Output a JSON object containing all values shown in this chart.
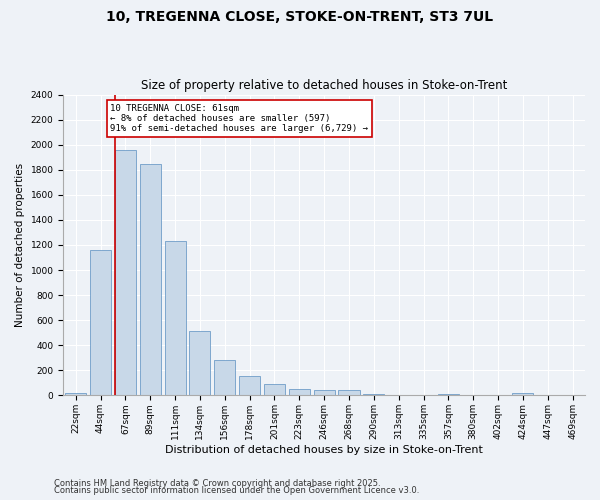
{
  "title": "10, TREGENNA CLOSE, STOKE-ON-TRENT, ST3 7UL",
  "subtitle": "Size of property relative to detached houses in Stoke-on-Trent",
  "xlabel": "Distribution of detached houses by size in Stoke-on-Trent",
  "ylabel": "Number of detached properties",
  "categories": [
    "22sqm",
    "44sqm",
    "67sqm",
    "89sqm",
    "111sqm",
    "134sqm",
    "156sqm",
    "178sqm",
    "201sqm",
    "223sqm",
    "246sqm",
    "268sqm",
    "290sqm",
    "313sqm",
    "335sqm",
    "357sqm",
    "380sqm",
    "402sqm",
    "424sqm",
    "447sqm",
    "469sqm"
  ],
  "values": [
    20,
    1160,
    1960,
    1850,
    1230,
    510,
    280,
    155,
    90,
    55,
    45,
    40,
    15,
    5,
    0,
    15,
    5,
    0,
    20,
    5,
    0
  ],
  "bar_color": "#c8d8e8",
  "bar_edge_color": "#5a8fc0",
  "annotation_line1": "10 TREGENNA CLOSE: 61sqm",
  "annotation_line2": "← 8% of detached houses are smaller (597)",
  "annotation_line3": "91% of semi-detached houses are larger (6,729) →",
  "annotation_box_color": "#ffffff",
  "annotation_box_edge": "#cc0000",
  "vline_x": 1.57,
  "vline_color": "#cc0000",
  "ylim": [
    0,
    2400
  ],
  "yticks": [
    0,
    200,
    400,
    600,
    800,
    1000,
    1200,
    1400,
    1600,
    1800,
    2000,
    2200,
    2400
  ],
  "bg_color": "#eef2f7",
  "grid_color": "#ffffff",
  "footer1": "Contains HM Land Registry data © Crown copyright and database right 2025.",
  "footer2": "Contains public sector information licensed under the Open Government Licence v3.0.",
  "title_fontsize": 10,
  "subtitle_fontsize": 8.5,
  "xlabel_fontsize": 8,
  "ylabel_fontsize": 7.5,
  "tick_fontsize": 6.5,
  "footer_fontsize": 6
}
